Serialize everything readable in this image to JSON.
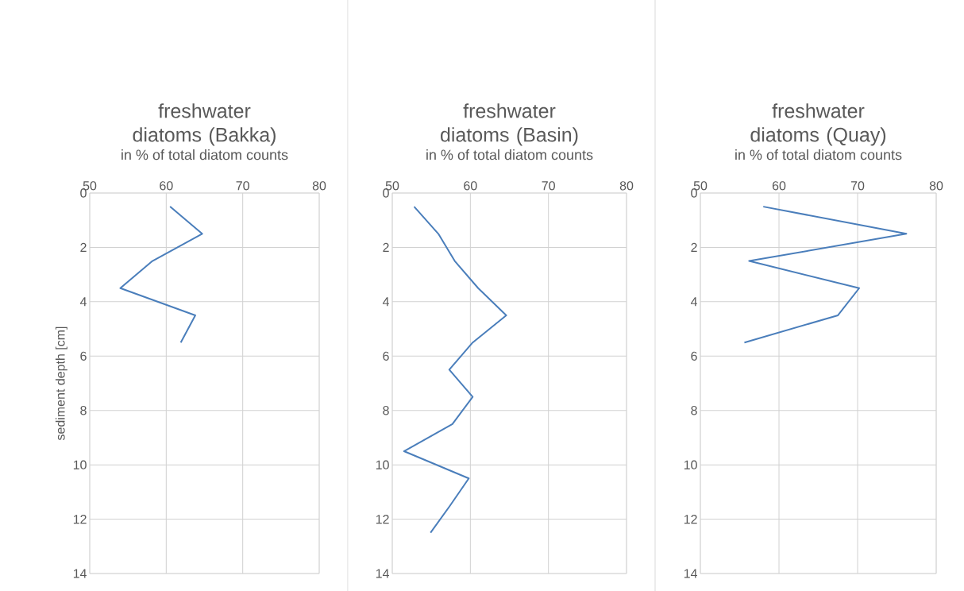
{
  "chart_data": [
    {
      "type": "line",
      "title": "freshwater diatoms (Bakka)",
      "xlabel": "in % of total diatom counts",
      "ylabel": "sediment depth [cm]",
      "xlim": [
        50,
        80
      ],
      "xticks": [
        50,
        60,
        70,
        80
      ],
      "ylim": [
        14,
        0
      ],
      "yticks": [
        0,
        2,
        4,
        6,
        8,
        10,
        12,
        14
      ],
      "grid": true,
      "marker": "none",
      "series": [
        {
          "color": "#4a7ebb",
          "x": [
            60.5,
            64.7,
            58.2,
            54.0,
            63.8,
            61.9
          ],
          "values": [
            0.5,
            1.5,
            2.5,
            3.5,
            4.5,
            5.5
          ]
        }
      ]
    },
    {
      "type": "line",
      "title": "freshwater diatoms (Basin)",
      "xlabel": "in % of total diatom counts",
      "xlim": [
        50,
        80
      ],
      "xticks": [
        50,
        60,
        70,
        80
      ],
      "ylim": [
        14,
        0
      ],
      "yticks": [
        0,
        2,
        4,
        6,
        8,
        10,
        12,
        14
      ],
      "grid": true,
      "marker": "none",
      "series": [
        {
          "color": "#4a7ebb",
          "x": [
            52.8,
            55.9,
            58.0,
            61.0,
            64.6,
            60.3,
            57.3,
            60.3,
            57.7,
            51.5,
            59.8,
            57.4,
            54.9
          ],
          "values": [
            0.5,
            1.5,
            2.5,
            3.5,
            4.5,
            5.5,
            6.5,
            7.5,
            8.5,
            9.5,
            10.5,
            11.5,
            12.5
          ]
        }
      ]
    },
    {
      "type": "line",
      "title": "freshwater diatoms (Quay)",
      "xlabel": "in % of total diatom counts",
      "xlim": [
        50,
        80
      ],
      "xticks": [
        50,
        60,
        70,
        80
      ],
      "ylim": [
        14,
        0
      ],
      "yticks": [
        0,
        2,
        4,
        6,
        8,
        10,
        12,
        14
      ],
      "grid": true,
      "marker": "none",
      "series": [
        {
          "color": "#4a7ebb",
          "x": [
            58.0,
            76.2,
            56.2,
            70.2,
            67.5,
            55.6
          ],
          "values": [
            0.5,
            1.5,
            2.5,
            3.5,
            4.5,
            5.5
          ]
        }
      ]
    }
  ]
}
